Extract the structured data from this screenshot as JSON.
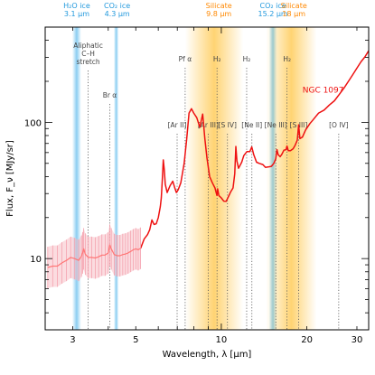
{
  "chart_data": {
    "type": "line",
    "title": "",
    "xlabel": "Wavelength, λ [μm]",
    "ylabel": "Flux, F_ν [MJy/sr]",
    "xscale": "log",
    "yscale": "log",
    "xlim": [
      2.4,
      33
    ],
    "ylim": [
      3,
      500
    ],
    "grid": false,
    "xticks": [
      {
        "v": 3,
        "label": "3"
      },
      {
        "v": 5,
        "label": "5"
      },
      {
        "v": 10,
        "label": "10"
      },
      {
        "v": 20,
        "label": "20"
      },
      {
        "v": 30,
        "label": "30"
      }
    ],
    "yticks": [
      {
        "v": 10,
        "label": "10"
      },
      {
        "v": 100,
        "label": "100"
      }
    ],
    "series": [
      {
        "name": "NGC 1097",
        "color": "#ee1111",
        "points": [
          [
            5.2,
            11.9
          ],
          [
            5.35,
            13.9
          ],
          [
            5.5,
            15.0
          ],
          [
            5.6,
            16.3
          ],
          [
            5.7,
            19.2
          ],
          [
            5.8,
            17.8
          ],
          [
            5.9,
            18.0
          ],
          [
            6.0,
            20.0
          ],
          [
            6.1,
            24.0
          ],
          [
            6.15,
            27.9
          ],
          [
            6.2,
            37.6
          ],
          [
            6.25,
            53.0
          ],
          [
            6.3,
            45.0
          ],
          [
            6.35,
            35.1
          ],
          [
            6.45,
            30.5
          ],
          [
            6.6,
            34.3
          ],
          [
            6.75,
            37.0
          ],
          [
            6.85,
            33.4
          ],
          [
            6.95,
            30.5
          ],
          [
            7.05,
            32.0
          ],
          [
            7.2,
            36.0
          ],
          [
            7.4,
            50.0
          ],
          [
            7.55,
            74.0
          ],
          [
            7.7,
            117.0
          ],
          [
            7.85,
            126.0
          ],
          [
            8.0,
            117.0
          ],
          [
            8.2,
            108.0
          ],
          [
            8.4,
            92.0
          ],
          [
            8.6,
            115.0
          ],
          [
            8.75,
            76.0
          ],
          [
            8.9,
            55.0
          ],
          [
            9.1,
            40.0
          ],
          [
            9.3,
            36.0
          ],
          [
            9.5,
            33.0
          ],
          [
            9.65,
            29.0
          ],
          [
            9.7,
            32.5
          ],
          [
            9.8,
            29.0
          ],
          [
            10.0,
            27.9
          ],
          [
            10.2,
            26.4
          ],
          [
            10.4,
            26.3
          ],
          [
            10.6,
            28.6
          ],
          [
            10.8,
            31.0
          ],
          [
            11.0,
            33.0
          ],
          [
            11.15,
            42.0
          ],
          [
            11.25,
            66.5
          ],
          [
            11.35,
            52.0
          ],
          [
            11.5,
            46.0
          ],
          [
            11.8,
            51.0
          ],
          [
            12.0,
            57.0
          ],
          [
            12.3,
            61.0
          ],
          [
            12.6,
            61.0
          ],
          [
            12.8,
            66.0
          ],
          [
            13.0,
            58.0
          ],
          [
            13.3,
            51.0
          ],
          [
            13.6,
            50.0
          ],
          [
            14.0,
            49.0
          ],
          [
            14.3,
            46.7
          ],
          [
            14.6,
            47.0
          ],
          [
            15.0,
            47.5
          ],
          [
            15.3,
            50.0
          ],
          [
            15.55,
            54.0
          ],
          [
            15.7,
            63.0
          ],
          [
            15.85,
            58.0
          ],
          [
            16.1,
            56.0
          ],
          [
            16.3,
            58.0
          ],
          [
            16.6,
            62.5
          ],
          [
            16.9,
            63.0
          ],
          [
            17.03,
            67.0
          ],
          [
            17.2,
            62.0
          ],
          [
            17.5,
            62.0
          ],
          [
            17.9,
            64.0
          ],
          [
            18.2,
            68.0
          ],
          [
            18.5,
            74.0
          ],
          [
            18.71,
            96.0
          ],
          [
            18.9,
            76.0
          ],
          [
            19.3,
            78.0
          ],
          [
            19.8,
            88.0
          ],
          [
            20.5,
            98.0
          ],
          [
            21.0,
            104.0
          ],
          [
            22.0,
            117.0
          ],
          [
            23.0,
            123.0
          ],
          [
            24.0,
            134.0
          ],
          [
            25.0,
            144.0
          ],
          [
            26.0,
            160.0
          ],
          [
            27.0,
            178.0
          ],
          [
            28.0,
            200.0
          ],
          [
            29.0,
            224.0
          ],
          [
            30.0,
            250.0
          ],
          [
            31.0,
            278.0
          ],
          [
            32.0,
            302.0
          ],
          [
            33.0,
            335.0
          ]
        ]
      },
      {
        "name": "",
        "color": "#ff7777",
        "points": [
          [
            2.45,
            8.6
          ],
          [
            2.55,
            8.8
          ],
          [
            2.65,
            8.8
          ],
          [
            2.75,
            9.3
          ],
          [
            2.85,
            9.7
          ],
          [
            2.95,
            10.2
          ],
          [
            3.05,
            10.0
          ],
          [
            3.15,
            9.7
          ],
          [
            3.22,
            10.4
          ],
          [
            3.25,
            11.0
          ],
          [
            3.28,
            11.8
          ],
          [
            3.32,
            10.8
          ],
          [
            3.4,
            10.2
          ],
          [
            3.5,
            10.2
          ],
          [
            3.6,
            10.1
          ],
          [
            3.7,
            10.3
          ],
          [
            3.8,
            10.6
          ],
          [
            3.9,
            10.6
          ],
          [
            4.0,
            11.0
          ],
          [
            4.05,
            12.6
          ],
          [
            4.1,
            11.8
          ],
          [
            4.2,
            10.7
          ],
          [
            4.3,
            10.5
          ],
          [
            4.4,
            10.5
          ],
          [
            4.5,
            10.7
          ],
          [
            4.6,
            10.8
          ],
          [
            4.7,
            11.0
          ],
          [
            4.8,
            11.3
          ],
          [
            4.9,
            11.6
          ],
          [
            5.0,
            11.8
          ],
          [
            5.1,
            11.6
          ],
          [
            5.2,
            11.9
          ]
        ],
        "err_frac": 0.42
      }
    ],
    "bands": [
      {
        "type": "ice",
        "center": 3.1,
        "halfwidth": 0.08,
        "color": "#7ec8f0"
      },
      {
        "type": "ice",
        "center": 4.27,
        "halfwidth": 0.06,
        "color": "#7ec8f0"
      },
      {
        "type": "ice",
        "center": 15.2,
        "halfwidth": 0.35,
        "color": "#7ec8f0"
      },
      {
        "type": "silicate",
        "center": 9.7,
        "halfwidth": 1.6,
        "color": "#ffb000"
      },
      {
        "type": "silicate",
        "center": 18.0,
        "halfwidth": 2.6,
        "color": "#ffb000"
      }
    ],
    "band_labels": [
      {
        "x": 3.1,
        "lines": [
          "H₂O ice",
          "3.1 μm"
        ],
        "color": "#2299dd"
      },
      {
        "x": 4.3,
        "lines": [
          "CO₂ ice",
          "4.3 μm"
        ],
        "color": "#2299dd"
      },
      {
        "x": 9.8,
        "lines": [
          "Silicate",
          "9.8 μm"
        ],
        "color": "#ff8800"
      },
      {
        "x": 15.2,
        "lines": [
          "CO₂ ice",
          "15.2 μm"
        ],
        "color": "#2299dd"
      },
      {
        "x": 18,
        "lines": [
          "Silicate",
          "18 μm"
        ],
        "color": "#ff8800"
      }
    ],
    "features": [
      {
        "x": 3.4,
        "lines": [
          "Aliphatic",
          "C–H",
          "stretch"
        ],
        "label_y": 55,
        "align": "middle"
      },
      {
        "x": 4.05,
        "lines": [
          "Br α"
        ],
        "label_y": 110,
        "align": "middle"
      },
      {
        "x": 6.99,
        "lines": [
          "[Ar II]"
        ],
        "label_y": 143,
        "align": "middle"
      },
      {
        "x": 7.46,
        "lines": [
          "Pf α"
        ],
        "label_y": 70,
        "align": "middle"
      },
      {
        "x": 8.99,
        "lines": [
          "[Ar III]"
        ],
        "label_y": 143,
        "align": "middle"
      },
      {
        "x": 9.66,
        "lines": [
          "H₂"
        ],
        "label_y": 70,
        "align": "middle"
      },
      {
        "x": 10.51,
        "lines": [
          "[S IV]"
        ],
        "label_y": 143,
        "align": "middle"
      },
      {
        "x": 12.28,
        "lines": [
          "H₂"
        ],
        "label_y": 70,
        "align": "middle"
      },
      {
        "x": 12.81,
        "lines": [
          "[Ne II]"
        ],
        "label_y": 143,
        "align": "middle"
      },
      {
        "x": 15.55,
        "lines": [
          "[Ne III]"
        ],
        "label_y": 143,
        "align": "middle"
      },
      {
        "x": 17.03,
        "lines": [
          "H₂"
        ],
        "label_y": 70,
        "align": "middle"
      },
      {
        "x": 18.71,
        "lines": [
          "[S III]"
        ],
        "label_y": 143,
        "align": "middle"
      },
      {
        "x": 25.89,
        "lines": [
          "[O IV]"
        ],
        "label_y": 143,
        "align": "middle"
      }
    ],
    "annotations": [
      {
        "text": "NGC 1097",
        "x": 19.3,
        "y": 165,
        "color": "#ee1111"
      }
    ]
  }
}
